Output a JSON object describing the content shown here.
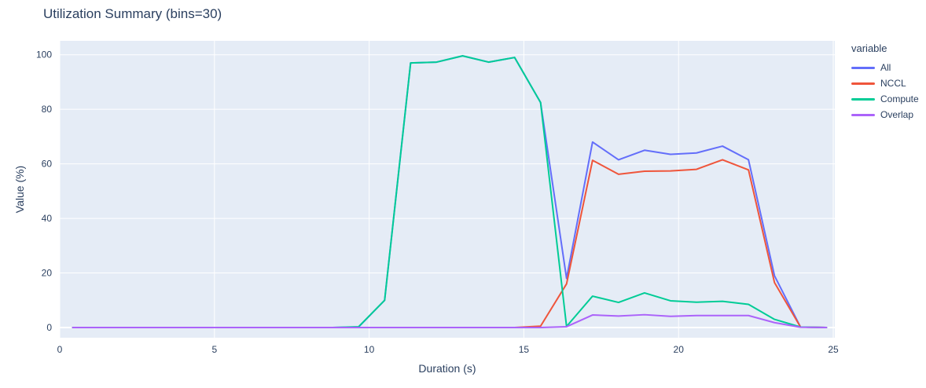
{
  "chart_data": {
    "type": "line",
    "title": "Utilization Summary (bins=30)",
    "xlabel": "Duration (s)",
    "ylabel": "Value (%)",
    "legend_title": "variable",
    "x_ticks": [
      0,
      5,
      10,
      15,
      20,
      25
    ],
    "y_ticks": [
      0,
      20,
      40,
      60,
      80,
      100
    ],
    "xlim": [
      0,
      25.05
    ],
    "ylim": [
      -3.74,
      105.1
    ],
    "grid": true,
    "legend_position": "right",
    "plot_bg_color": "#e5ecf6",
    "grid_color": "#ffffff",
    "text_color": "#2a3f5f",
    "x": [
      0.42,
      1.26,
      2.1,
      2.94,
      3.78,
      4.62,
      5.46,
      6.3,
      7.14,
      7.98,
      8.82,
      9.66,
      10.5,
      11.34,
      12.18,
      13.02,
      13.86,
      14.7,
      15.54,
      16.38,
      17.22,
      18.06,
      18.9,
      19.74,
      20.58,
      21.42,
      22.26,
      23.1,
      23.94,
      24.78
    ],
    "series": [
      {
        "name": "All",
        "color": "#636efa",
        "values": [
          0,
          0,
          0,
          0,
          0,
          0,
          0,
          0,
          0,
          0,
          0,
          0.2,
          10,
          97,
          97.3,
          99.6,
          97.3,
          99,
          82.5,
          18,
          68,
          61.5,
          65,
          63.5,
          64,
          66.5,
          61.5,
          19,
          0.2,
          0
        ]
      },
      {
        "name": "NCCL",
        "color": "#ef553b",
        "values": [
          0,
          0,
          0,
          0,
          0,
          0,
          0,
          0,
          0,
          0,
          0,
          0,
          0,
          0,
          0,
          0,
          0,
          0,
          0.5,
          16,
          61.3,
          56.2,
          57.3,
          57.4,
          58,
          61.5,
          57.8,
          16.5,
          0.2,
          0
        ]
      },
      {
        "name": "Compute",
        "color": "#00cc96",
        "values": [
          0,
          0,
          0,
          0,
          0,
          0,
          0,
          0,
          0,
          0,
          0,
          0.3,
          10,
          97,
          97.3,
          99.6,
          97.3,
          99,
          82.5,
          0.4,
          11.5,
          9.2,
          12.7,
          9.8,
          9.3,
          9.6,
          8.5,
          3,
          0.2,
          0
        ]
      },
      {
        "name": "Overlap",
        "color": "#ab63fa",
        "values": [
          0,
          0,
          0,
          0,
          0,
          0,
          0,
          0,
          0,
          0,
          0,
          0,
          0,
          0,
          0,
          0,
          0,
          0,
          0,
          0.3,
          4.6,
          4.2,
          4.7,
          4.1,
          4.4,
          4.4,
          4.4,
          1.8,
          0.1,
          0
        ]
      }
    ]
  }
}
